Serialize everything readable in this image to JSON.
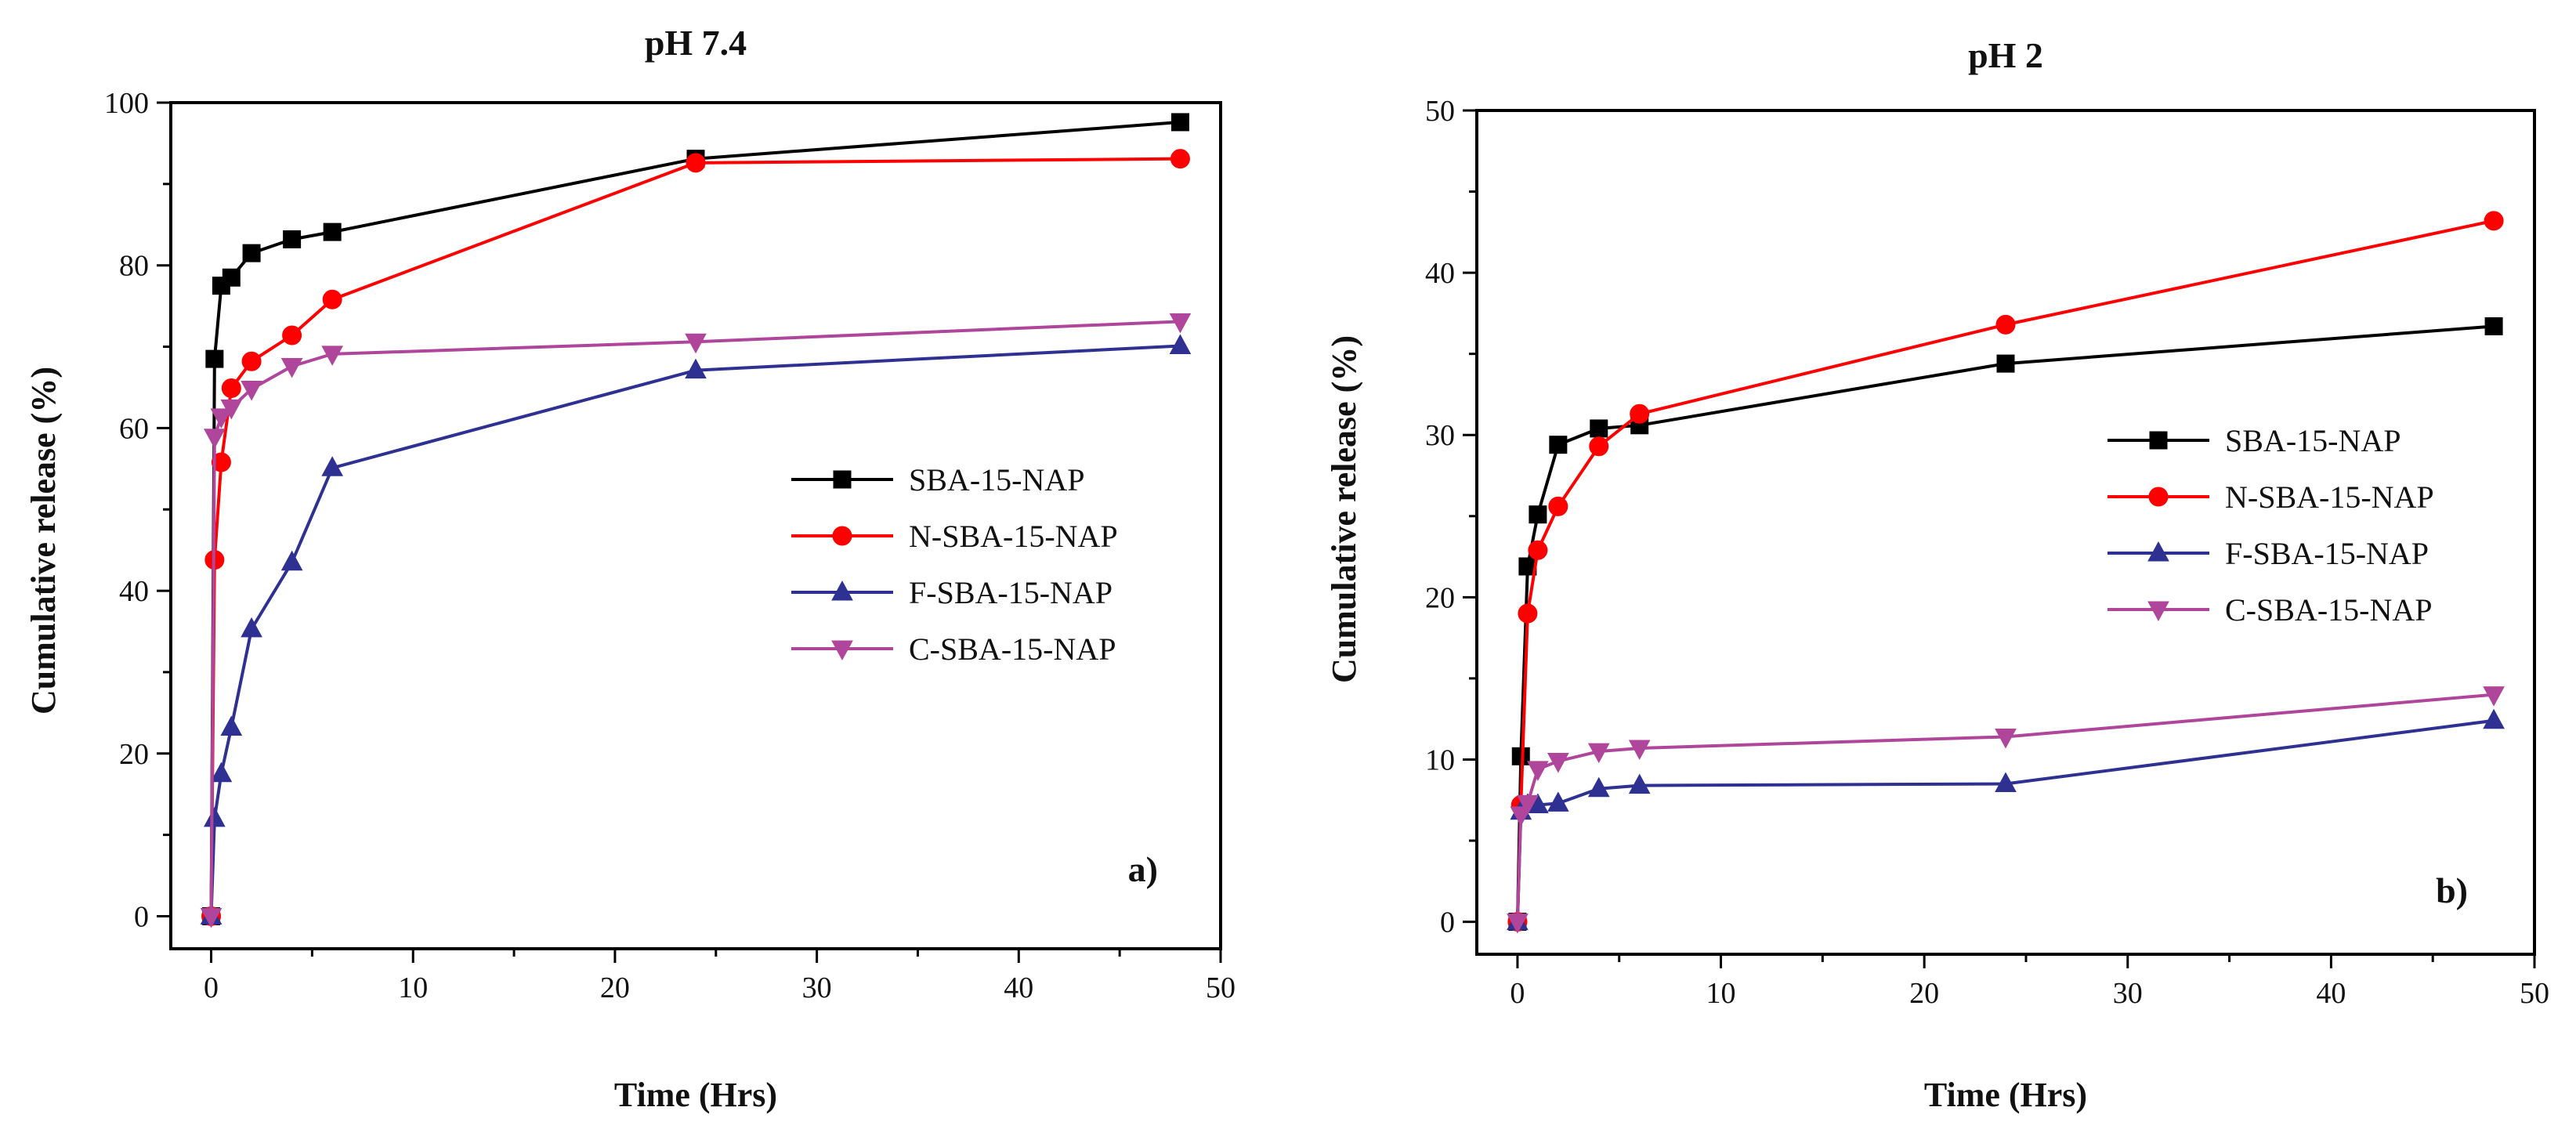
{
  "chart_data": [
    {
      "type": "line",
      "panel": "a",
      "title": "pH 7.4",
      "xlabel": "Time (Hrs)",
      "ylabel": "Cumulative release (%)",
      "xlim": [
        -2,
        50
      ],
      "ylim": [
        -4,
        100
      ],
      "xticks": [
        0,
        10,
        20,
        30,
        40,
        50
      ],
      "yticks": [
        0,
        20,
        40,
        60,
        80,
        100
      ],
      "panel_label": "a)",
      "legend_position": "center-right",
      "x": [
        0,
        0.167,
        0.5,
        1,
        2,
        4,
        6,
        24,
        48
      ],
      "series": [
        {
          "name": "SBA-15-NAP",
          "color": "#000000",
          "marker": "square",
          "values": [
            0,
            68.5,
            77.5,
            78.5,
            81.5,
            83.2,
            84.1,
            93.1,
            97.6
          ]
        },
        {
          "name": "N-SBA-15-NAP",
          "color": "#ff0000",
          "marker": "circle",
          "values": [
            0,
            43.8,
            55.8,
            64.9,
            68.2,
            71.4,
            75.8,
            92.6,
            93.1
          ]
        },
        {
          "name": "F-SBA-15-NAP",
          "color": "#2e3192",
          "marker": "triangle-up",
          "values": [
            0,
            12.0,
            17.5,
            23.2,
            35.3,
            43.5,
            55.1,
            67.1,
            70.1
          ]
        },
        {
          "name": "C-SBA-15-NAP",
          "color": "#b0469b",
          "marker": "triangle-down",
          "values": [
            0,
            58.9,
            61.4,
            62.5,
            64.8,
            67.6,
            69.1,
            70.6,
            73.1
          ]
        }
      ]
    },
    {
      "type": "line",
      "panel": "b",
      "title": "pH 2",
      "xlabel": "Time (Hrs)",
      "ylabel": "Cumulative release (%)",
      "xlim": [
        -2,
        50
      ],
      "ylim": [
        -2,
        50
      ],
      "xticks": [
        0,
        10,
        20,
        30,
        40,
        50
      ],
      "yticks": [
        0,
        10,
        20,
        30,
        40,
        50
      ],
      "panel_label": "b)",
      "legend_position": "center-right",
      "x": [
        0,
        0.167,
        0.5,
        1,
        2,
        4,
        6,
        24,
        48
      ],
      "series": [
        {
          "name": "SBA-15-NAP",
          "color": "#000000",
          "marker": "square",
          "values": [
            0,
            10.2,
            21.9,
            25.1,
            29.4,
            30.4,
            30.6,
            34.4,
            36.7
          ]
        },
        {
          "name": "N-SBA-15-NAP",
          "color": "#ff0000",
          "marker": "circle",
          "values": [
            0,
            7.2,
            19.0,
            22.9,
            25.6,
            29.3,
            31.3,
            36.8,
            43.2
          ]
        },
        {
          "name": "F-SBA-15-NAP",
          "color": "#2e3192",
          "marker": "triangle-up",
          "values": [
            0,
            6.8,
            7.2,
            7.2,
            7.3,
            8.2,
            8.4,
            8.5,
            12.4
          ]
        },
        {
          "name": "C-SBA-15-NAP",
          "color": "#b0469b",
          "marker": "triangle-down",
          "values": [
            0,
            6.6,
            7.3,
            9.4,
            9.9,
            10.5,
            10.7,
            11.4,
            14.0
          ]
        }
      ]
    }
  ]
}
